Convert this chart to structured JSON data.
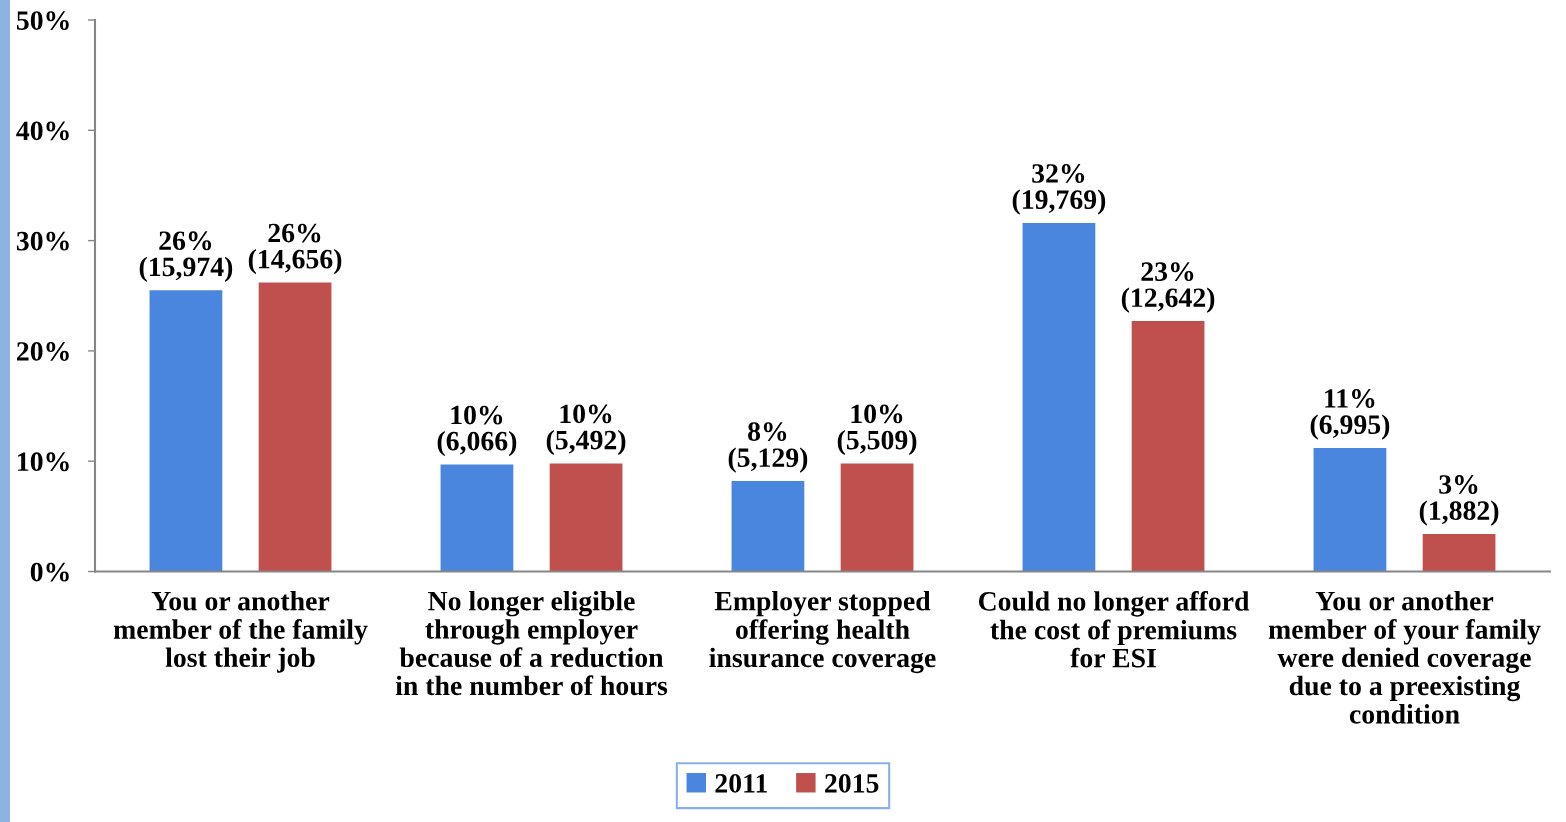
{
  "chart_data": {
    "type": "bar",
    "categories": [
      "You or another\nmember of the family\nlost their job",
      "No longer eligible\nthrough employer\nbecause of a reduction\nin the number of hours",
      "Employer stopped\noffering health\ninsurance coverage",
      "Could no longer afford\nthe cost of premiums\nfor ESI",
      "You or another\nmember of your family\nwere denied coverage\ndue to a preexisting\ncondition"
    ],
    "series": [
      {
        "name": "2011",
        "color": "#4a86de",
        "values": [
          25.5,
          9.7,
          8.2,
          31.6,
          11.2
        ],
        "value_labels": [
          "26%\n(15,974)",
          "10%\n(6,066)",
          "8%\n(5,129)",
          "32%\n(19,769)",
          "11%\n(6,995)"
        ]
      },
      {
        "name": "2015",
        "color": "#c0504d",
        "values": [
          26.2,
          9.8,
          9.8,
          22.7,
          3.4
        ],
        "value_labels": [
          "26%\n(14,656)",
          "10%\n(5,492)",
          "10%\n(5,509)",
          "23%\n(12,642)",
          "3%\n(1,882)"
        ]
      }
    ],
    "ylim": [
      0,
      50
    ],
    "yticks": [
      {
        "value": 0,
        "label": "0%"
      },
      {
        "value": 10,
        "label": "10%"
      },
      {
        "value": 20,
        "label": "20%"
      },
      {
        "value": 30,
        "label": "30%"
      },
      {
        "value": 40,
        "label": "40%"
      },
      {
        "value": 50,
        "label": "50%"
      }
    ],
    "grid": false,
    "legend": "bottom"
  }
}
